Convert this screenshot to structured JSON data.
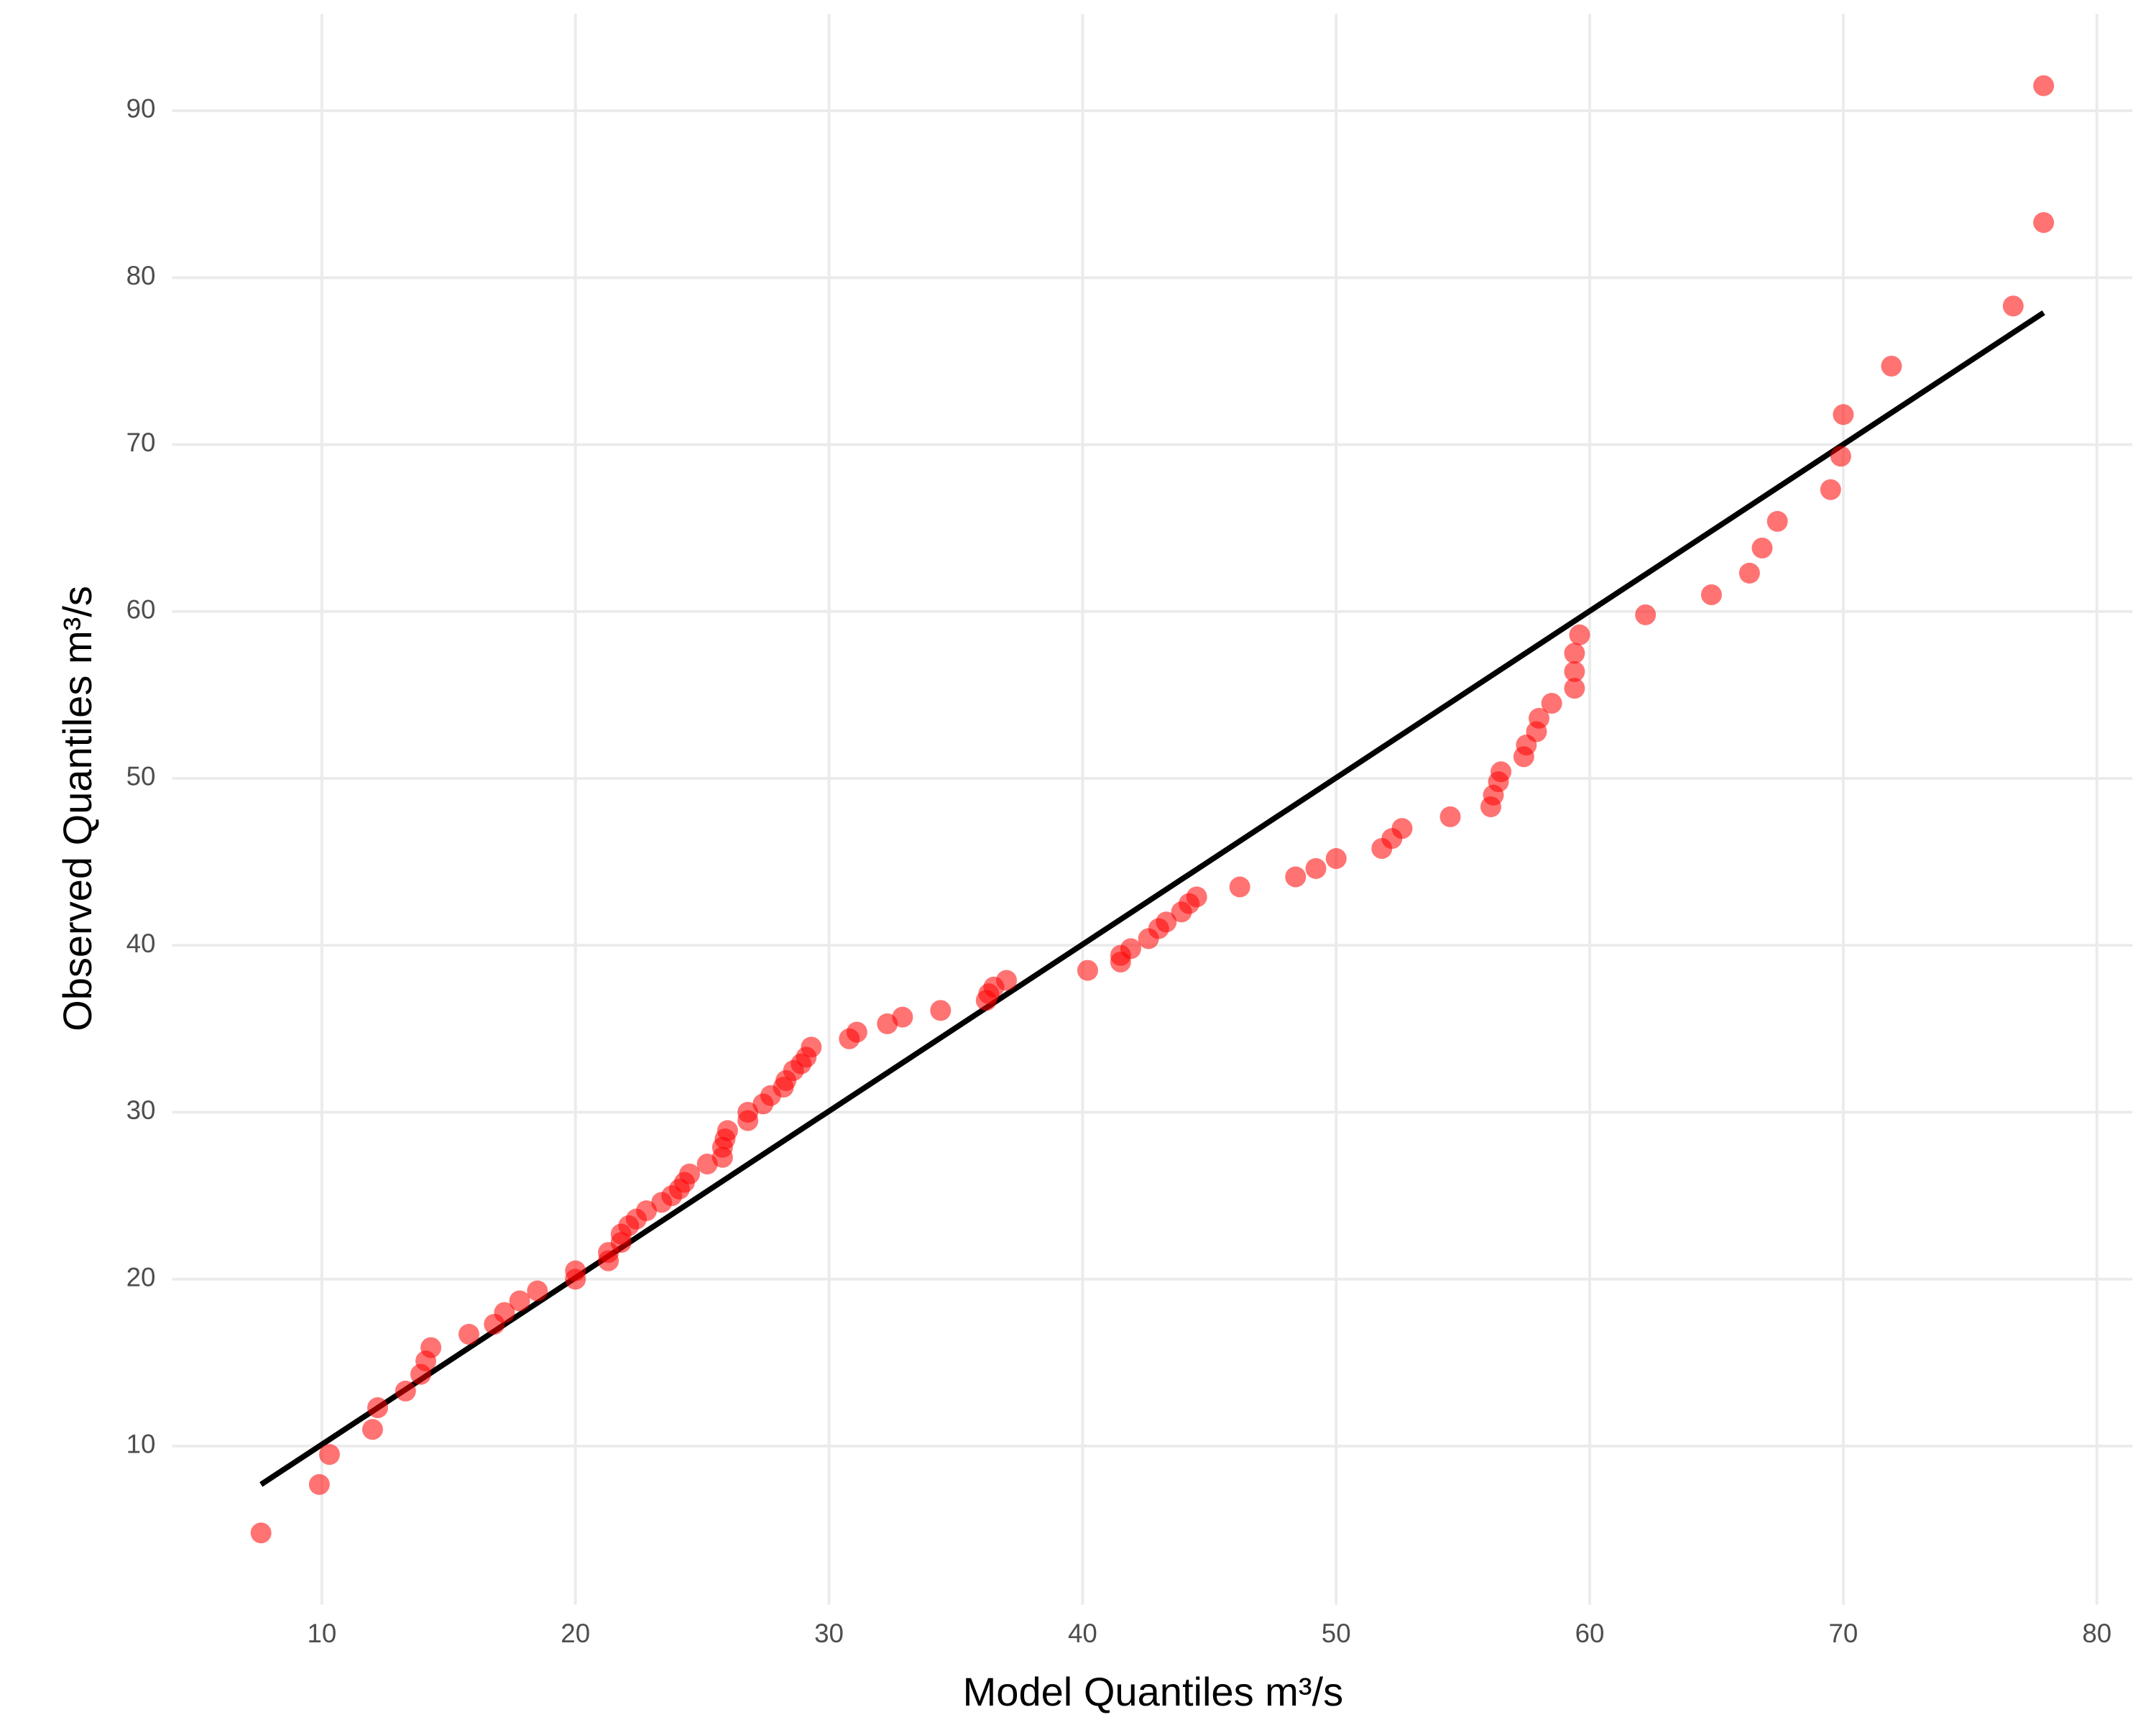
{
  "chart_data": {
    "type": "scatter",
    "x_label": "Model Quantiles m³/s",
    "y_label": "Observed Quantiles m³/s",
    "color": "#ff0000",
    "grid": true,
    "xlim": [
      4.1,
      81.4
    ],
    "xticks": [
      10,
      20,
      30,
      40,
      50,
      60,
      70,
      80
    ],
    "ylim": [
      0.5,
      95.8
    ],
    "yticks": [
      10,
      20,
      30,
      40,
      50,
      60,
      70,
      80,
      90
    ],
    "x": [
      7.6,
      9.9,
      10.3,
      12.0,
      12.2,
      13.3,
      13.9,
      14.1,
      14.3,
      15.8,
      16.8,
      17.2,
      17.8,
      18.5,
      20.0,
      20.0,
      21.3,
      21.3,
      21.8,
      21.8,
      22.1,
      22.4,
      22.8,
      23.4,
      23.8,
      24.1,
      24.3,
      24.5,
      25.2,
      25.8,
      25.8,
      25.9,
      26.0,
      26.8,
      26.8,
      27.4,
      27.7,
      28.2,
      28.3,
      28.6,
      28.9,
      29.1,
      29.3,
      30.8,
      31.1,
      32.3,
      32.9,
      34.4,
      36.2,
      36.3,
      36.5,
      37.0,
      40.2,
      41.5,
      41.5,
      41.9,
      42.6,
      43.0,
      43.3,
      43.9,
      44.2,
      44.5,
      46.2,
      48.4,
      49.2,
      50.0,
      51.8,
      52.2,
      52.6,
      54.5,
      56.1,
      56.2,
      56.4,
      56.5,
      57.4,
      57.5,
      57.9,
      58.0,
      58.5,
      59.4,
      59.4,
      59.4,
      59.6,
      62.2,
      64.8,
      66.3,
      66.8,
      67.4,
      69.5,
      69.9,
      70.0,
      71.9,
      76.7,
      77.9,
      77.9
    ],
    "values": [
      4.8,
      7.7,
      9.5,
      11.0,
      12.3,
      13.3,
      14.3,
      15.1,
      15.9,
      16.7,
      17.3,
      18.0,
      18.7,
      19.3,
      20.0,
      20.5,
      21.1,
      21.6,
      22.2,
      22.7,
      23.2,
      23.6,
      24.1,
      24.6,
      25.0,
      25.4,
      25.8,
      26.3,
      26.9,
      27.3,
      27.9,
      28.4,
      28.9,
      29.5,
      30.0,
      30.5,
      31.0,
      31.5,
      31.9,
      32.5,
      32.9,
      33.3,
      33.9,
      34.4,
      34.8,
      35.3,
      35.7,
      36.1,
      36.7,
      37.1,
      37.5,
      37.9,
      38.5,
      39.0,
      39.4,
      39.8,
      40.4,
      41.0,
      41.4,
      42.0,
      42.5,
      42.9,
      43.5,
      44.1,
      44.6,
      45.2,
      45.8,
      46.4,
      47.0,
      47.7,
      48.3,
      49.0,
      49.8,
      50.4,
      51.3,
      52.0,
      52.8,
      53.6,
      54.5,
      55.4,
      56.4,
      57.5,
      58.6,
      59.8,
      61.0,
      62.3,
      63.8,
      65.4,
      67.3,
      69.3,
      71.8,
      74.7,
      78.3,
      83.3,
      91.5
    ],
    "reference_line": {
      "x": [
        7.6,
        77.9
      ],
      "y": [
        7.7,
        77.9
      ],
      "color": "#000000"
    }
  }
}
